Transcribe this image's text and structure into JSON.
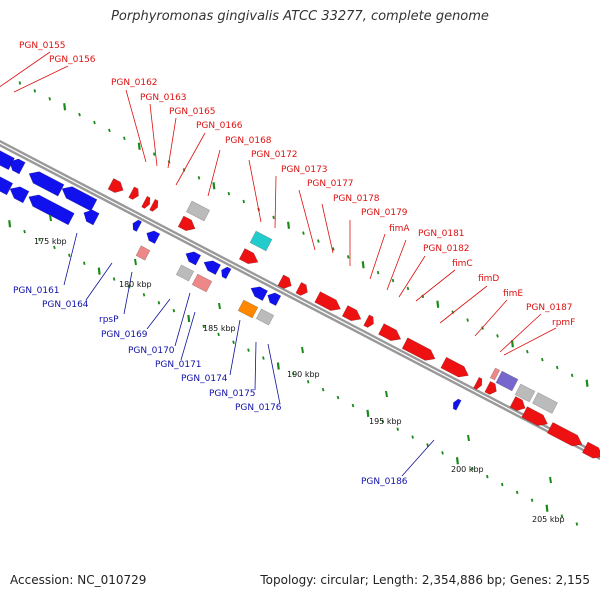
{
  "title": "Porphyromonas gingivalis ATCC 33277, complete genome",
  "footer": {
    "accession": "Accession: NC_010729",
    "summary": "Topology: circular; Length: 2,354,886 bp; Genes: 2,155"
  },
  "colors": {
    "forward": "#ee1111",
    "reverse": "#1111ee",
    "backbone": "#9a9a9a",
    "gc_marks": "#1a8a1a",
    "other_gene": "#bbbbbb",
    "rna": "#ff8800",
    "cyan": "#22cccc",
    "pink": "#ee8888",
    "purple": "#7766cc"
  },
  "scale_ticks": [
    "175 kbp",
    "180 kbp",
    "185 kbp",
    "190 kbp",
    "195 kbp",
    "200 kbp",
    "205 kbp"
  ],
  "forward_labels": [
    "PGN_0155",
    "PGN_0156",
    "PGN_0162",
    "PGN_0163",
    "PGN_0165",
    "PGN_0166",
    "PGN_0168",
    "PGN_0172",
    "PGN_0173",
    "PGN_0177",
    "PGN_0178",
    "PGN_0179",
    "fimA",
    "PGN_0181",
    "PGN_0182",
    "fimC",
    "fimD",
    "fimE",
    "PGN_0187",
    "rpmF"
  ],
  "reverse_labels": [
    "PGN_0161",
    "PGN_0164",
    "rpsP",
    "PGN_0169",
    "PGN_0170",
    "PGN_0171",
    "PGN_0174",
    "PGN_0175",
    "PGN_0176",
    "PGN_0186"
  ]
}
